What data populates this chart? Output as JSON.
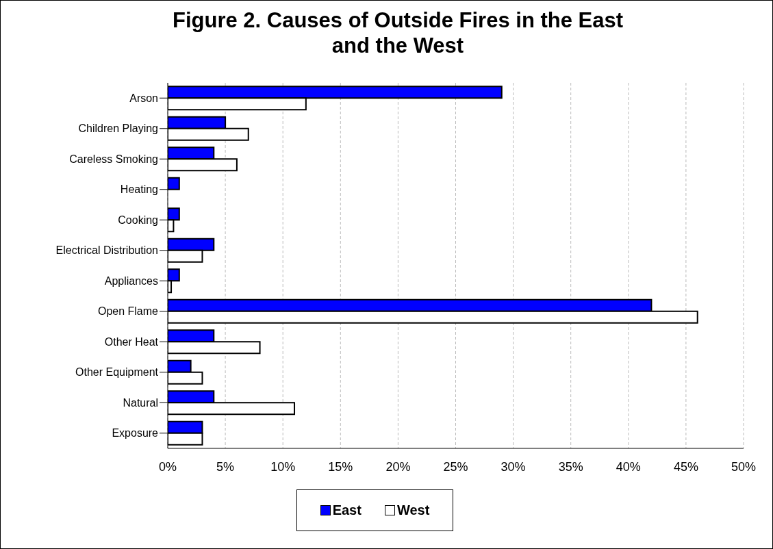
{
  "chart_data": {
    "type": "bar",
    "orientation": "horizontal",
    "title": "Figure 2.  Causes of Outside Fires in the East and the West",
    "categories": [
      "Arson",
      "Children Playing",
      "Careless Smoking",
      "Heating",
      "Cooking",
      "Electrical Distribution",
      "Appliances",
      "Open Flame",
      "Other Heat",
      "Other Equipment",
      "Natural",
      "Exposure"
    ],
    "series": [
      {
        "name": "East",
        "color": "#0000ff",
        "values": [
          29,
          5,
          4,
          1,
          1,
          4,
          1,
          42,
          4,
          2,
          4,
          3
        ]
      },
      {
        "name": "West",
        "color": "#ffffff",
        "values": [
          12,
          7,
          6,
          0,
          0.5,
          3,
          0.3,
          46,
          8,
          3,
          11,
          3
        ]
      }
    ],
    "xlim": [
      0,
      50
    ],
    "xticks": [
      {
        "value": 0,
        "label": "0%"
      },
      {
        "value": 5,
        "label": "5%"
      },
      {
        "value": 10,
        "label": "10%"
      },
      {
        "value": 15,
        "label": "15%"
      },
      {
        "value": 20,
        "label": "20%"
      },
      {
        "value": 25,
        "label": "25%"
      },
      {
        "value": 30,
        "label": "30%"
      },
      {
        "value": 35,
        "label": "35%"
      },
      {
        "value": 40,
        "label": "40%"
      },
      {
        "value": 45,
        "label": "45%"
      },
      {
        "value": 50,
        "label": "50%"
      }
    ],
    "grid": "x",
    "legend": "bottom"
  }
}
